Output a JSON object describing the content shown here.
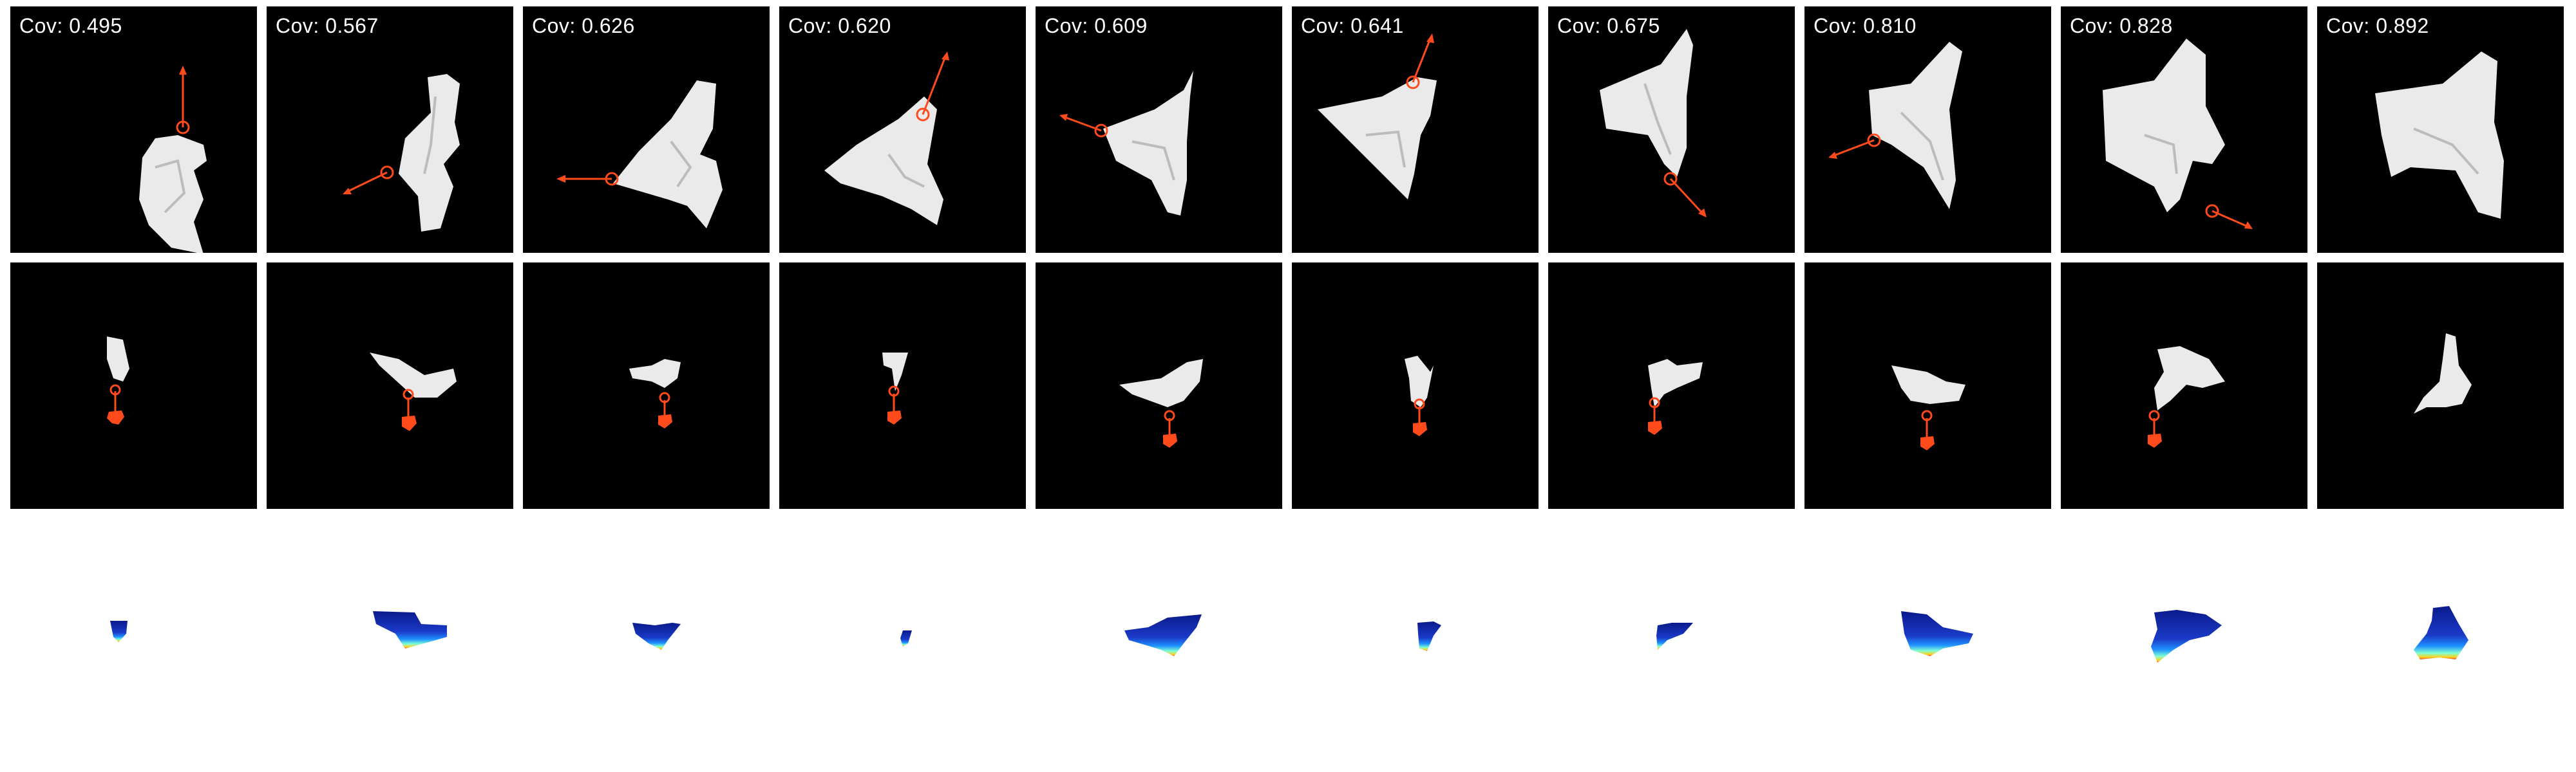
{
  "panels": [
    {
      "cov_label": "Cov:",
      "cov_value": "0.495"
    },
    {
      "cov_label": "Cov:",
      "cov_value": "0.567"
    },
    {
      "cov_label": "Cov:",
      "cov_value": "0.626"
    },
    {
      "cov_label": "Cov:",
      "cov_value": "0.620"
    },
    {
      "cov_label": "Cov:",
      "cov_value": "0.609"
    },
    {
      "cov_label": "Cov:",
      "cov_value": "0.641"
    },
    {
      "cov_label": "Cov:",
      "cov_value": "0.675"
    },
    {
      "cov_label": "Cov:",
      "cov_value": "0.810"
    },
    {
      "cov_label": "Cov:",
      "cov_value": "0.828"
    },
    {
      "cov_label": "Cov:",
      "cov_value": "0.892"
    }
  ],
  "colors": {
    "panel_background": "#000000",
    "cloth": "#e8e8e8",
    "pick_marker": "#ff4a1c",
    "depth_far": "#0a1a8c",
    "depth_mid": "#1e90ff",
    "depth_near": "#7fffd4",
    "depth_edge": "#ffd21c"
  },
  "icons": {
    "pick_point": "circle-marker-icon",
    "drag_direction": "arrow-icon"
  }
}
